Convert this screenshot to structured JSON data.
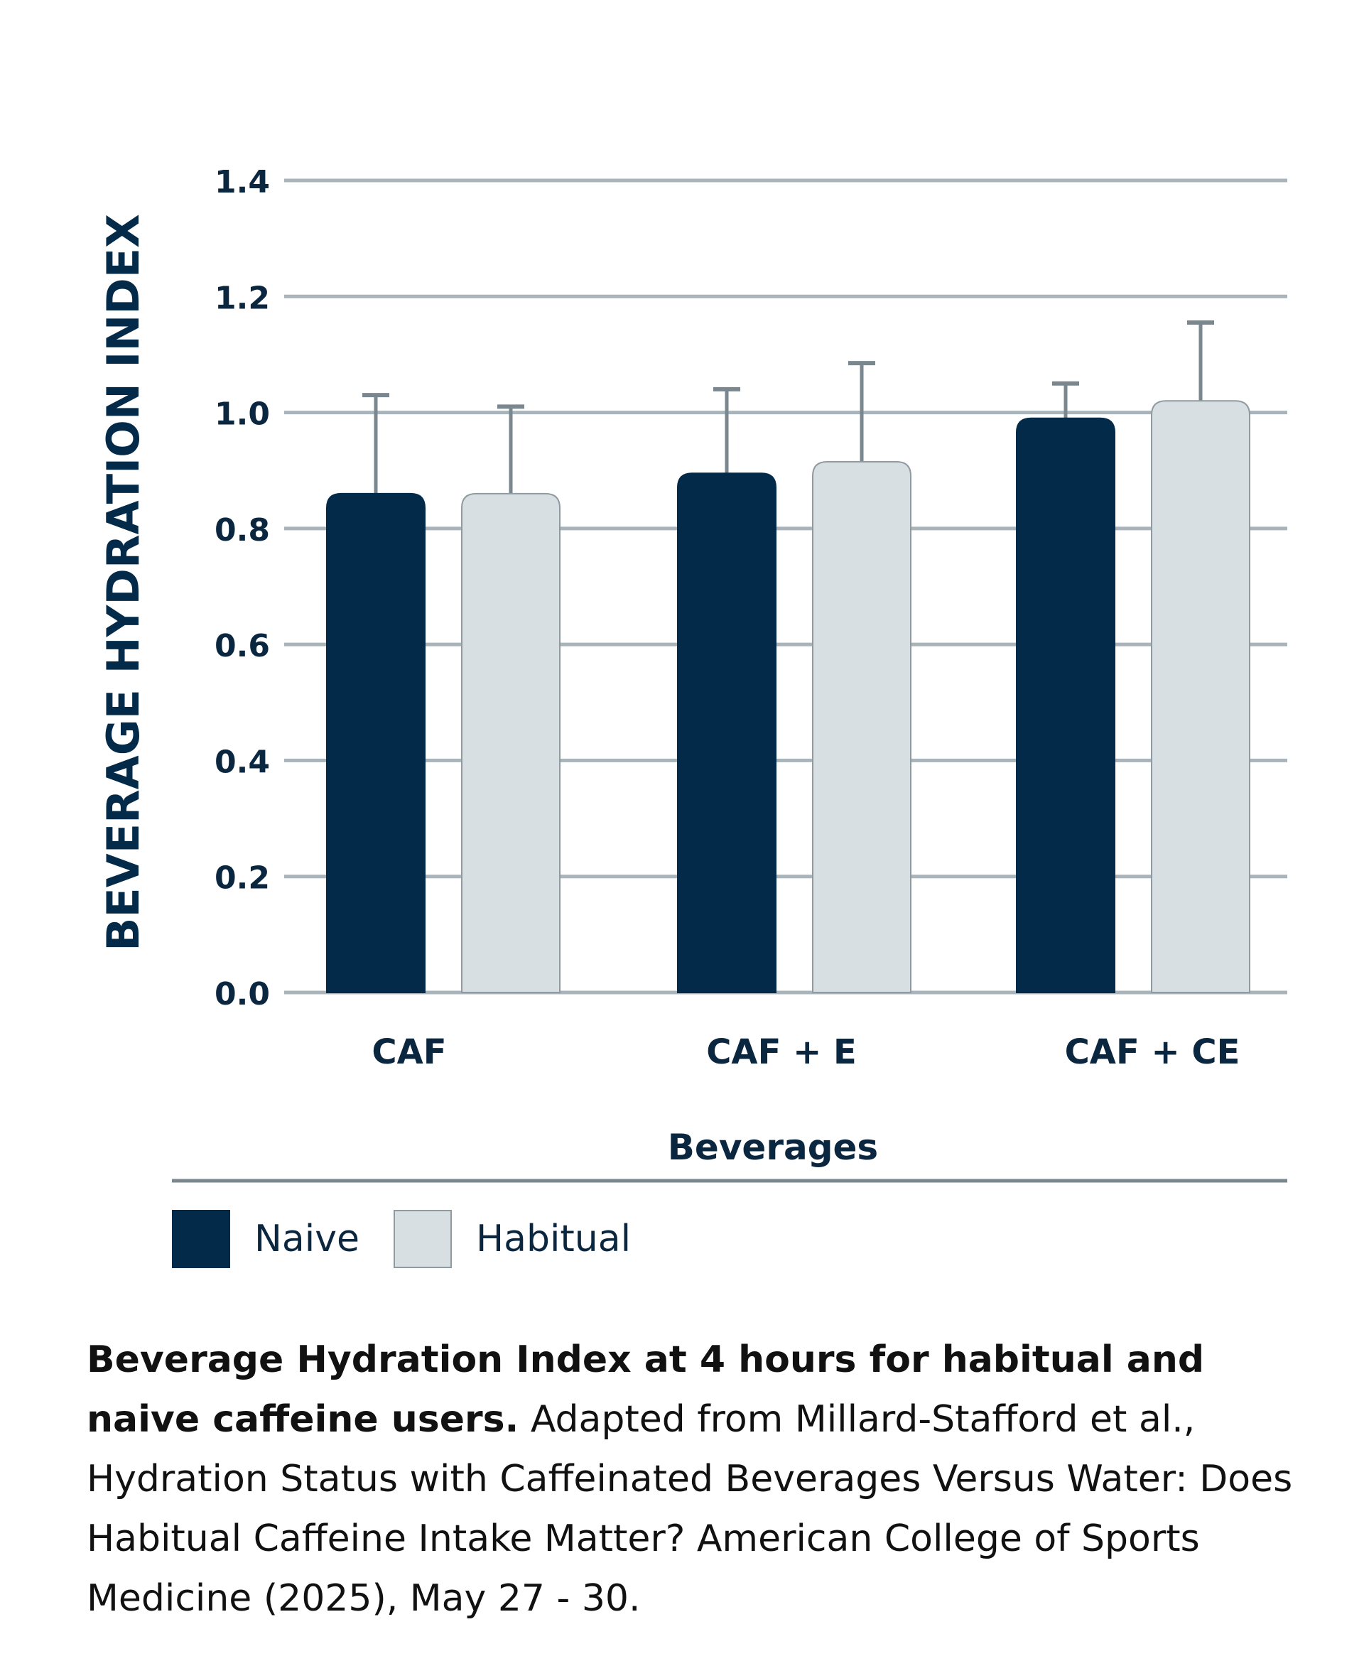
{
  "chart_data": {
    "type": "bar",
    "ylabel": "BEVERAGE HYDRATION INDEX",
    "xlabel": "Beverages",
    "ylim": [
      0,
      1.4
    ],
    "yticks": [
      "0.0",
      "0.2",
      "0.4",
      "0.6",
      "0.8",
      "1.0",
      "1.2",
      "1.4"
    ],
    "categories": [
      "CAF",
      "CAF + E",
      "CAF + CE"
    ],
    "series": [
      {
        "name": "Naive",
        "color": "#032b49",
        "values": [
          0.86,
          0.895,
          0.99
        ],
        "error_upper": [
          1.03,
          1.04,
          1.05
        ]
      },
      {
        "name": "Habitual",
        "color": "#d8dfe3",
        "values": [
          0.86,
          0.915,
          1.02
        ],
        "error_upper": [
          1.01,
          1.085,
          1.155
        ]
      }
    ],
    "grid": true,
    "legend": "bottom-left"
  },
  "caption": {
    "bold": "Beverage Hydration Index at 4 hours for habitual and naive caffeine users.",
    "text": " Adapted from Millard-Stafford et al., Hydration Status with Caffeinated Beverages Versus Water: Does Habitual Caffeine Intake Matter? American College of Sports Medicine (2025), May 27 - 30."
  },
  "colors": {
    "grid": "#a9b4ba",
    "error_bar": "#7a878e",
    "text": "#0b2740",
    "divider": "#7a878e"
  }
}
